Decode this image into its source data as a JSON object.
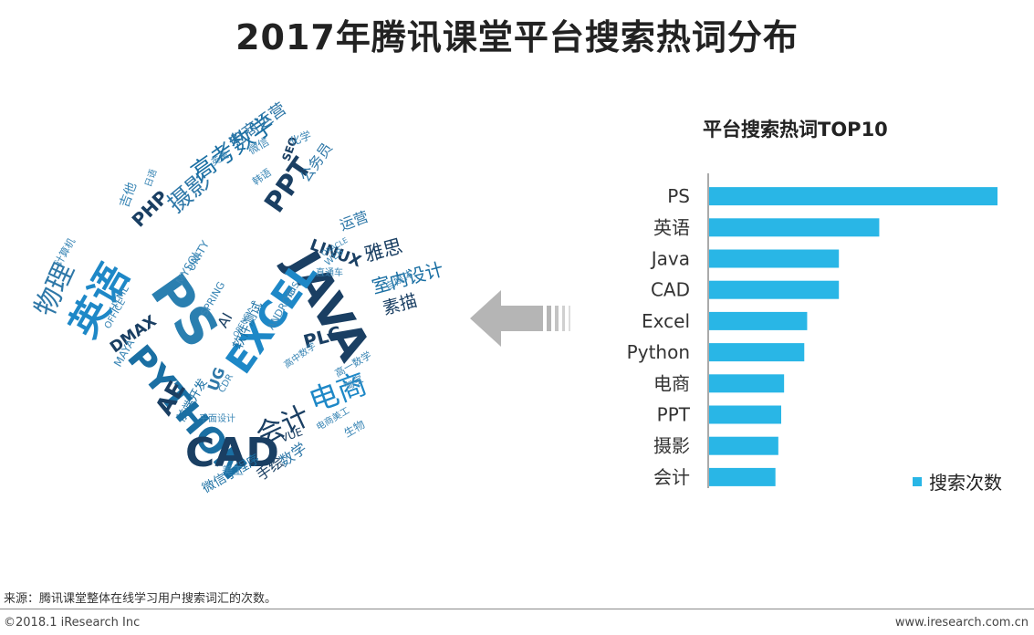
{
  "title": "2017年腾讯课堂平台搜索热词分布",
  "chart_data": {
    "type": "bar",
    "orientation": "horizontal",
    "title": "平台搜索热词TOP10",
    "categories": [
      "PS",
      "英语",
      "Java",
      "CAD",
      "Excel",
      "Python",
      "电商",
      "PPT",
      "摄影",
      "会计"
    ],
    "series": [
      {
        "name": "搜索次数",
        "values": [
          100,
          59,
          45,
          45,
          34,
          33,
          26,
          25,
          24,
          23
        ]
      }
    ],
    "xlim": [
      0,
      100
    ],
    "grid": false,
    "legend": "bottom-right",
    "color": "#29b6e6"
  },
  "wordcloud": {
    "words": [
      "PS",
      "JAVA",
      "英语",
      "PYTHON",
      "EXCEL",
      "CAD",
      "电商",
      "物理",
      "会计",
      "摄影",
      "PPT",
      "高考数学",
      "电商运营",
      "雅思",
      "室内设计",
      "素描",
      "LINUX",
      "PHP",
      "AE",
      "UG",
      "PLC",
      "DMAX",
      "公务员",
      "运营",
      "数学",
      "平面设计",
      "吉他",
      "MAYA",
      "AI",
      "UNITY",
      "ANDROID",
      "MYSQL",
      "SPRING",
      "HTML",
      "OFFICE",
      "SEO",
      "WEB",
      "化学",
      "生物",
      "手绘",
      "微信小程序",
      "前端开发",
      "软件测试",
      "高中数学",
      "电商美工",
      "直通车",
      "VUE",
      "CDR",
      "GIS",
      "ORACLE",
      "英美",
      "OPENCV",
      "计算机",
      "微信",
      "淘宝",
      "日语",
      "美工",
      "高一数学",
      "韩语",
      "自媒体"
    ]
  },
  "source": "来源：腾讯课堂整体在线学习用户搜索词汇的次数。",
  "footer": {
    "left": "©2018.1 iResearch Inc",
    "right": "www.iresearch.com.cn"
  }
}
